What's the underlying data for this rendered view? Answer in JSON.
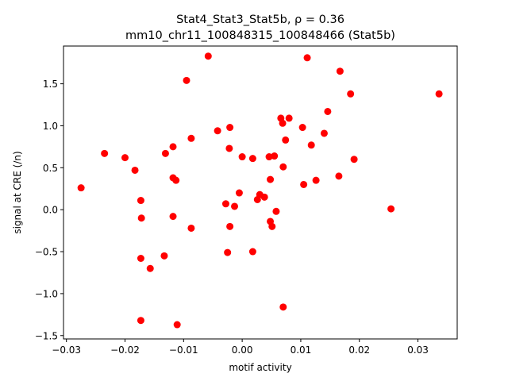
{
  "chart_data": {
    "type": "scatter",
    "title_line1": "Stat4_Stat3_Stat5b, ρ = 0.36",
    "title_line2": "mm10_chr11_100848315_100848466 (Stat5b)",
    "xlabel": "motif activity",
    "ylabel": "signal at CRE (/n)",
    "xlim": [
      -0.0305,
      0.0367
    ],
    "ylim": [
      -1.54,
      1.95
    ],
    "xticks": [
      -0.03,
      -0.02,
      -0.01,
      0.0,
      0.01,
      0.02,
      0.03
    ],
    "xtick_labels": [
      "−0.03",
      "−0.02",
      "−0.01",
      "0.00",
      "0.01",
      "0.02",
      "0.03"
    ],
    "yticks": [
      -1.5,
      -1.0,
      -0.5,
      0.0,
      0.5,
      1.0,
      1.5
    ],
    "ytick_labels": [
      "−1.5",
      "−1.0",
      "−0.5",
      "0.0",
      "0.5",
      "1.0",
      "1.5"
    ],
    "grid": false,
    "marker_color": "#ff0000",
    "points": [
      {
        "x": -0.0275,
        "y": 0.26
      },
      {
        "x": -0.0235,
        "y": 0.67
      },
      {
        "x": -0.02,
        "y": 0.62
      },
      {
        "x": -0.0183,
        "y": 0.47
      },
      {
        "x": -0.0173,
        "y": 0.11
      },
      {
        "x": -0.0172,
        "y": -0.1
      },
      {
        "x": -0.0173,
        "y": -0.58
      },
      {
        "x": -0.0173,
        "y": -1.32
      },
      {
        "x": -0.0157,
        "y": -0.7
      },
      {
        "x": -0.0133,
        "y": -0.55
      },
      {
        "x": -0.0131,
        "y": 0.67
      },
      {
        "x": -0.0118,
        "y": 0.75
      },
      {
        "x": -0.0118,
        "y": 0.38
      },
      {
        "x": -0.0113,
        "y": 0.35
      },
      {
        "x": -0.0118,
        "y": -0.08
      },
      {
        "x": -0.0111,
        "y": -1.37
      },
      {
        "x": -0.0095,
        "y": 1.54
      },
      {
        "x": -0.0087,
        "y": 0.85
      },
      {
        "x": -0.0087,
        "y": -0.22
      },
      {
        "x": -0.0058,
        "y": 1.83
      },
      {
        "x": -0.0042,
        "y": 0.94
      },
      {
        "x": -0.0028,
        "y": 0.07
      },
      {
        "x": -0.0025,
        "y": -0.51
      },
      {
        "x": -0.0021,
        "y": 0.98
      },
      {
        "x": -0.0022,
        "y": 0.73
      },
      {
        "x": -0.0021,
        "y": -0.2
      },
      {
        "x": -0.0013,
        "y": 0.04
      },
      {
        "x": -0.0005,
        "y": 0.2
      },
      {
        "x": 0.0,
        "y": 0.63
      },
      {
        "x": 0.0018,
        "y": 0.61
      },
      {
        "x": 0.0018,
        "y": -0.5
      },
      {
        "x": 0.0026,
        "y": 0.12
      },
      {
        "x": 0.003,
        "y": 0.18
      },
      {
        "x": 0.0038,
        "y": 0.15
      },
      {
        "x": 0.0046,
        "y": 0.63
      },
      {
        "x": 0.0048,
        "y": 0.36
      },
      {
        "x": 0.0048,
        "y": -0.14
      },
      {
        "x": 0.0051,
        "y": -0.2
      },
      {
        "x": 0.0055,
        "y": 0.64
      },
      {
        "x": 0.0058,
        "y": -0.02
      },
      {
        "x": 0.0066,
        "y": 1.09
      },
      {
        "x": 0.0069,
        "y": 1.03
      },
      {
        "x": 0.007,
        "y": 0.51
      },
      {
        "x": 0.0074,
        "y": 0.83
      },
      {
        "x": 0.007,
        "y": -1.16
      },
      {
        "x": 0.008,
        "y": 1.09
      },
      {
        "x": 0.0103,
        "y": 0.98
      },
      {
        "x": 0.0105,
        "y": 0.3
      },
      {
        "x": 0.0111,
        "y": 1.81
      },
      {
        "x": 0.0118,
        "y": 0.77
      },
      {
        "x": 0.0126,
        "y": 0.35
      },
      {
        "x": 0.014,
        "y": 0.91
      },
      {
        "x": 0.0146,
        "y": 1.17
      },
      {
        "x": 0.0165,
        "y": 0.4
      },
      {
        "x": 0.0167,
        "y": 1.65
      },
      {
        "x": 0.0185,
        "y": 1.38
      },
      {
        "x": 0.0191,
        "y": 0.6
      },
      {
        "x": 0.0254,
        "y": 0.01
      },
      {
        "x": 0.0336,
        "y": 1.38
      }
    ]
  }
}
